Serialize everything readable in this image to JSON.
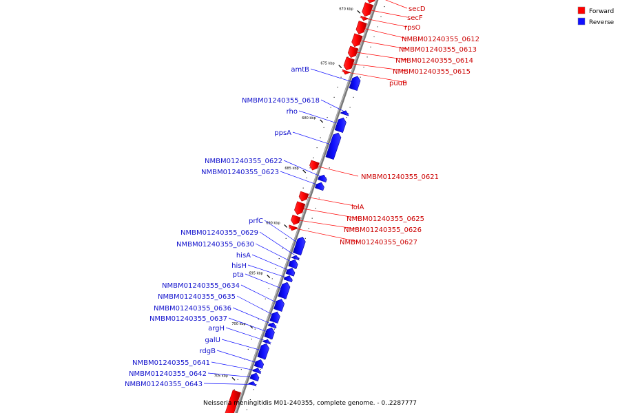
{
  "caption": "Neisseria meningitidis M01-240355, complete genome. - 0..2287777",
  "legend": [
    {
      "label": "Forward",
      "color": "#ff0000"
    },
    {
      "label": "Reverse",
      "color": "#1010ff"
    }
  ],
  "colors": {
    "forward": "#ff0000",
    "reverse": "#1010ff",
    "forward_line": "#ff0000",
    "reverse_line": "#1010ff"
  },
  "kbp_ticks": [
    {
      "label": "670 kbp",
      "t": 0.03
    },
    {
      "label": "675 kbp",
      "t": 0.16
    },
    {
      "label": "680 kbp",
      "t": 0.29
    },
    {
      "label": "685 kbp",
      "t": 0.41
    },
    {
      "label": "690 kbp",
      "t": 0.54
    },
    {
      "label": "695 kbp",
      "t": 0.66
    },
    {
      "label": "700 kbp",
      "t": 0.78
    },
    {
      "label": "705 kbp",
      "t": 0.904
    }
  ],
  "forward_genes": [
    {
      "name": "secD",
      "t1": -0.02,
      "t2": 0.02
    },
    {
      "name": "secF",
      "t1": 0.022,
      "t2": 0.052
    },
    {
      "name": "rpsO",
      "t1": 0.054,
      "t2": 0.062
    },
    {
      "name": "NMBM01240355_0612",
      "t1": 0.066,
      "t2": 0.094
    },
    {
      "name": "NMBM01240355_0613",
      "t1": 0.096,
      "t2": 0.124
    },
    {
      "name": "NMBM01240355_0614",
      "t1": 0.126,
      "t2": 0.15
    },
    {
      "name": "NMBM01240355_0615",
      "t1": 0.152,
      "t2": 0.18
    },
    {
      "name": "puuB",
      "t1": 0.182,
      "t2": 0.19
    },
    {
      "name": "NMBM01240355_0621",
      "t1": 0.398,
      "t2": 0.418
    },
    {
      "name": "lolA",
      "t1": 0.472,
      "t2": 0.492
    },
    {
      "name": "NMBM01240355_0625",
      "t1": 0.496,
      "t2": 0.524
    },
    {
      "name": "NMBM01240355_0626",
      "t1": 0.528,
      "t2": 0.548
    },
    {
      "name": "NMBM01240355_0627",
      "t1": 0.552,
      "t2": 0.562
    }
  ],
  "reverse_genes": [
    {
      "name": "amtB",
      "t1": 0.185,
      "t2": 0.216
    },
    {
      "name": "NMBM01240355_0618",
      "t1": 0.267,
      "t2": 0.276
    },
    {
      "name": "rho",
      "t1": 0.284,
      "t2": 0.316
    },
    {
      "name": "ppsA",
      "t1": 0.32,
      "t2": 0.38
    },
    {
      "name": "NMBM01240355_0622",
      "t1": 0.42,
      "t2": 0.434
    },
    {
      "name": "NMBM01240355_0623",
      "t1": 0.438,
      "t2": 0.454
    },
    {
      "name": "prfC",
      "t1": 0.568,
      "t2": 0.608
    },
    {
      "name": "NMBM01240355_0629",
      "t1": 0.612,
      "t2": 0.62
    },
    {
      "name": "NMBM01240355_0630",
      "t1": 0.622,
      "t2": 0.64
    },
    {
      "name": "hisA",
      "t1": 0.642,
      "t2": 0.658
    },
    {
      "name": "hisH",
      "t1": 0.66,
      "t2": 0.672
    },
    {
      "name": "pta",
      "t1": 0.676,
      "t2": 0.712
    },
    {
      "name": "NMBM01240355_0634",
      "t1": 0.716,
      "t2": 0.742
    },
    {
      "name": "NMBM01240355_0635",
      "t1": 0.746,
      "t2": 0.77
    },
    {
      "name": "NMBM01240355_0636",
      "t1": 0.772,
      "t2": 0.782
    },
    {
      "name": "NMBM01240355_0637",
      "t1": 0.784,
      "t2": 0.808
    },
    {
      "name": "argH",
      "t1": 0.812,
      "t2": 0.82
    },
    {
      "name": "galU",
      "t1": 0.822,
      "t2": 0.856
    },
    {
      "name": "rdgB",
      "t1": 0.86,
      "t2": 0.878
    },
    {
      "name": "NMBM01240355_0641",
      "t1": 0.88,
      "t2": 0.89
    },
    {
      "name": "NMBM01240355_0642",
      "t1": 0.892,
      "t2": 0.908
    },
    {
      "name": "NMBM01240355_0643",
      "t1": 0.912,
      "t2": 0.92
    }
  ],
  "trailing_forward": [
    {
      "name": "",
      "t1": 0.945,
      "t2": 1.02
    }
  ]
}
